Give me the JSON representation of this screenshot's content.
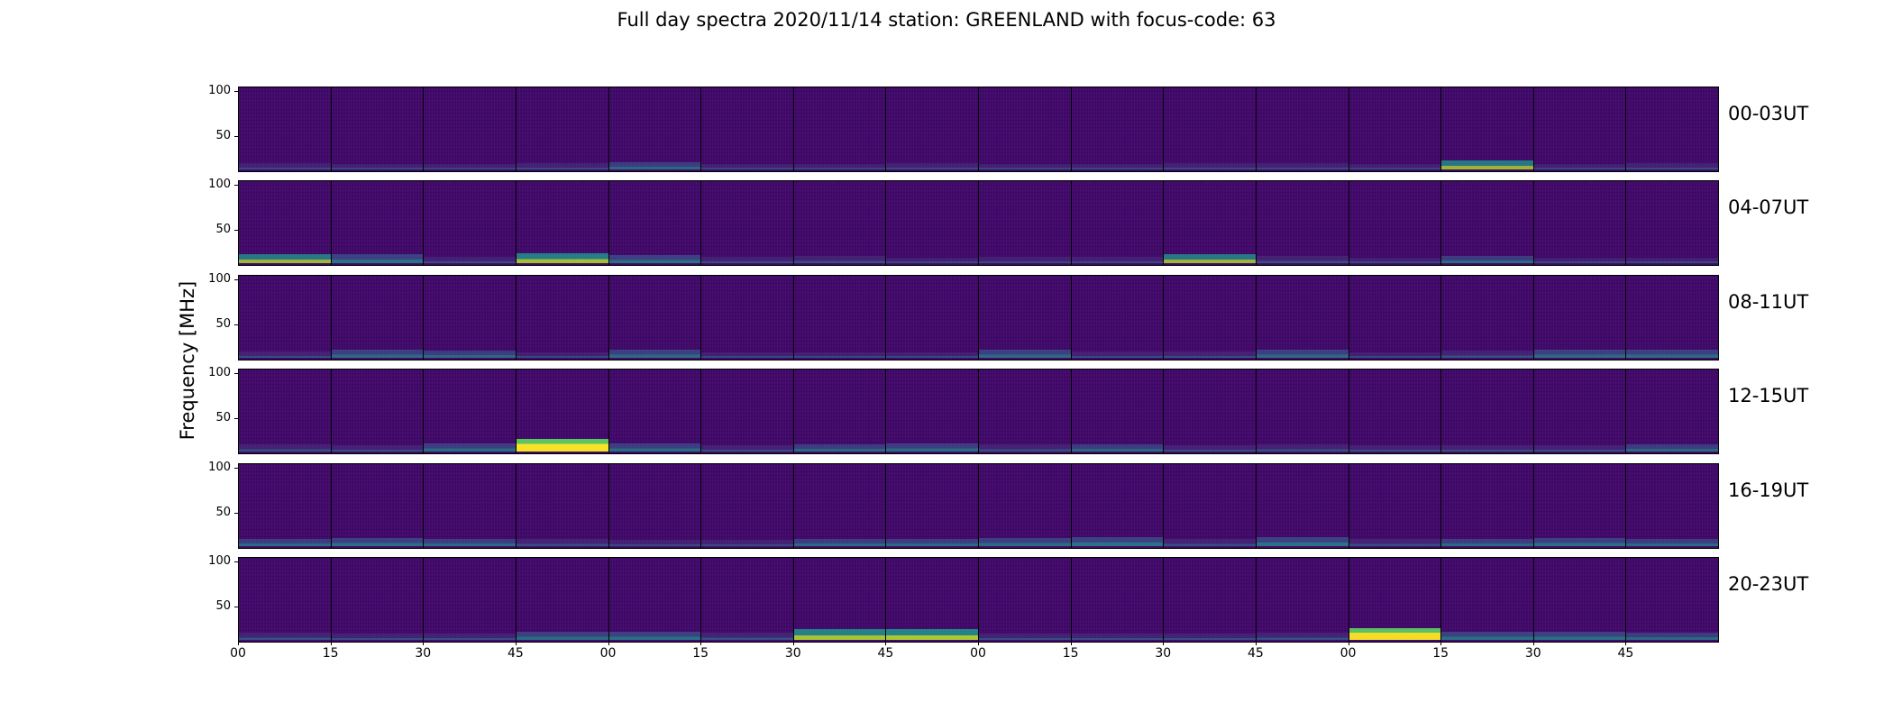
{
  "title": "Full day spectra 2020/11/14 station: GREENLAND with focus-code: 63",
  "chart_data": {
    "type": "heatmap",
    "title": "Full day spectra 2020/11/14 station: GREENLAND with focus-code: 63",
    "ylabel": "Frequency [MHz]",
    "xlabel": "",
    "y_ticks": [
      "100",
      "50"
    ],
    "x_ticks": [
      "00",
      "15",
      "30",
      "45",
      "00",
      "15",
      "30",
      "45",
      "00",
      "15",
      "30",
      "45",
      "00",
      "15",
      "30",
      "45"
    ],
    "ylim": [
      10,
      105
    ],
    "colormap": "viridis",
    "panels_per_row": 16,
    "minutes_per_panel": 15,
    "rows": [
      {
        "label": "00-03UT",
        "activity": [
          0.25,
          0.2,
          0.15,
          0.3,
          0.4,
          0.2,
          0.15,
          0.25,
          0.2,
          0.2,
          0.25,
          0.25,
          0.15,
          0.6,
          0.2,
          0.3
        ]
      },
      {
        "label": "04-07UT",
        "activity": [
          0.6,
          0.55,
          0.3,
          0.7,
          0.5,
          0.3,
          0.35,
          0.2,
          0.25,
          0.25,
          0.6,
          0.35,
          0.2,
          0.4,
          0.2,
          0.2
        ]
      },
      {
        "label": "08-11UT",
        "activity": [
          0.3,
          0.45,
          0.4,
          0.2,
          0.45,
          0.2,
          0.2,
          0.2,
          0.45,
          0.25,
          0.3,
          0.45,
          0.2,
          0.35,
          0.45,
          0.45
        ]
      },
      {
        "label": "12-15UT",
        "activity": [
          0.35,
          0.3,
          0.45,
          0.95,
          0.45,
          0.3,
          0.4,
          0.45,
          0.35,
          0.4,
          0.3,
          0.35,
          0.3,
          0.3,
          0.3,
          0.4
        ]
      },
      {
        "label": "16-19UT",
        "activity": [
          0.4,
          0.5,
          0.4,
          0.35,
          0.3,
          0.3,
          0.4,
          0.4,
          0.45,
          0.55,
          0.35,
          0.55,
          0.35,
          0.4,
          0.5,
          0.4
        ]
      },
      {
        "label": "20-23UT",
        "activity": [
          0.35,
          0.3,
          0.3,
          0.45,
          0.5,
          0.35,
          0.75,
          0.8,
          0.3,
          0.3,
          0.3,
          0.35,
          0.9,
          0.5,
          0.5,
          0.4
        ]
      }
    ],
    "grid": false
  }
}
